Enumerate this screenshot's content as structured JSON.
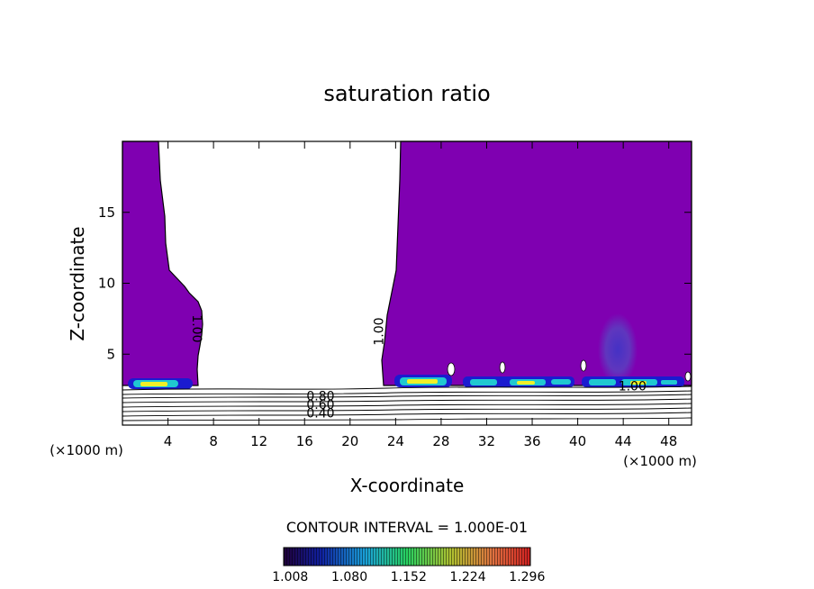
{
  "chart_data": {
    "type": "heatmap",
    "title": "saturation ratio",
    "xlabel": "X-coordinate",
    "ylabel": "Z-coordinate",
    "x_unit": "(×1000 m)",
    "y_unit": "(×1000 m)",
    "x_ticks": [
      4,
      8,
      12,
      16,
      20,
      24,
      28,
      32,
      36,
      40,
      44,
      48
    ],
    "y_ticks": [
      5,
      10,
      15
    ],
    "xlim": [
      0,
      50
    ],
    "ylim": [
      0,
      20
    ],
    "contour_interval_label": "CONTOUR INTERVAL = 1.000E-01",
    "contour_labels": [
      {
        "text": "1.00",
        "x": 6.5,
        "y": 6.8,
        "rotate": 90
      },
      {
        "text": "1.00",
        "x": 22.6,
        "y": 6.6,
        "rotate": -90
      },
      {
        "text": "1.00",
        "x": 44.8,
        "y": 2.7,
        "rotate": 0
      },
      {
        "text": "0.80",
        "x": 17.4,
        "y": 2.0,
        "rotate": 0
      },
      {
        "text": "0.60",
        "x": 17.4,
        "y": 1.4,
        "rotate": 0
      },
      {
        "text": "0.40",
        "x": 17.4,
        "y": 0.8,
        "rotate": 0
      }
    ],
    "colorbar_ticks": [
      "1.008",
      "1.080",
      "1.152",
      "1.224",
      "1.296"
    ],
    "colorbar_range": [
      1.0,
      1.3
    ],
    "fill_colors": {
      "saturated": "#7f00b1",
      "low": "#1b1bd0",
      "mid": "#20c8d0",
      "high": "#f0f028",
      "background": "#ffffff"
    },
    "regions": [
      {
        "name": "left-cloud",
        "x_range": [
          0,
          7
        ],
        "z_range": [
          3.3,
          20
        ]
      },
      {
        "name": "right-cloud",
        "x_range": [
          22.5,
          50
        ],
        "z_range": [
          3.3,
          20
        ]
      },
      {
        "name": "clear-gap",
        "x_range": [
          7,
          22.5
        ],
        "z_range": [
          2.5,
          20
        ]
      }
    ]
  }
}
